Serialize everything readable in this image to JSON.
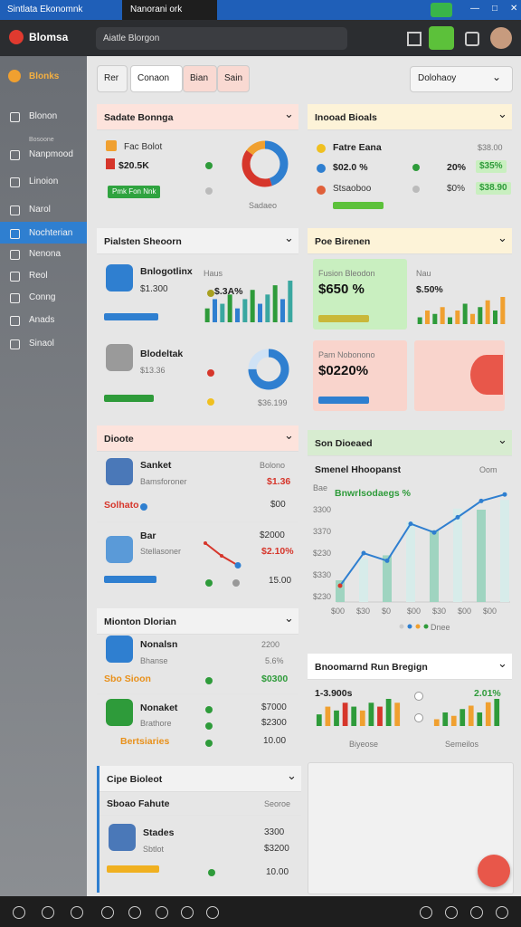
{
  "window": {
    "tabs": [
      "Sintlata Ekonomnk",
      "Nanorani ork"
    ]
  },
  "header": {
    "logo": "Blomsa",
    "search": "Aiatle Blorgon"
  },
  "sidebar": {
    "brand": "Blonks",
    "items": [
      "Blonon",
      "Nanpmood",
      "Linoion",
      "Narol",
      "Nochterian",
      "Nenona",
      "Reol",
      "Conng",
      "Anads",
      "Sinaol"
    ],
    "sub": "Bosoone",
    "active": 4
  },
  "filters": {
    "buttons": [
      "Rer",
      "Conaon",
      "Bian",
      "Sain"
    ],
    "dropdown": "Dolohaoy"
  },
  "cards": [
    {
      "title": "Sadate Bonnga",
      "texts": [
        "Fac Bolot",
        "$20.5K",
        "Pmk Fon Nnk",
        "Sadaeo"
      ],
      "donut": [
        45,
        40,
        15
      ]
    },
    {
      "title": "Pialsten Sheoorn",
      "texts": [
        "Bnlogotlinx",
        "$1.300",
        "Haus",
        "$.3A%",
        "Blodeltak",
        "$13.36",
        "$36.199"
      ],
      "bars": [
        3,
        5,
        4,
        6,
        3,
        5,
        7,
        4,
        6,
        8,
        5,
        9
      ],
      "ring": 75
    },
    {
      "title": "Dioote",
      "texts": [
        "Sanket",
        "Bamsforoner",
        "Bolono",
        "$1.36",
        "Solhato",
        "$00",
        "Bar",
        "Stellasoner",
        "$2000",
        "$2.10%",
        "15.00"
      ],
      "line": [
        4,
        2,
        0.5
      ]
    },
    {
      "title": "Mionton Dlorian",
      "texts": [
        "Nonalsn",
        "Bhanse",
        "2200",
        "5.6%",
        "Sbo Sioon",
        "$0300",
        "Nonaket",
        "Brathore",
        "$7000",
        "$2300",
        "Bertsiaries",
        "10.00"
      ]
    },
    {
      "title": "Cipe Bioleot",
      "texts": [
        "Sboao Fahute",
        "Seoroe",
        "Stades",
        "Sbtlot",
        "3300",
        "$3200",
        "10.00"
      ]
    },
    {
      "title": "Inooad Bioals",
      "texts": [
        "Fatre Eana",
        "$38.00",
        "$02.0 %",
        "20%",
        "$35%",
        "Stsaoboo",
        "$0%",
        "$38.90"
      ]
    },
    {
      "title": "Poe Birenen",
      "texts": [
        "Fusion Bleodon",
        "$650 %",
        "Nau",
        "$.50%",
        "Pam Nobonono",
        "$0220%"
      ],
      "bars": [
        2,
        4,
        3,
        5,
        2,
        4,
        6,
        3,
        5,
        7,
        4,
        8
      ]
    },
    {
      "title": "Son Dioeaed",
      "texts": [
        "Smenel Hhoopanst",
        "Oom",
        "Bnwrlsodaegs %",
        "Dnee"
      ],
      "ylabels": [
        "Bae",
        "3300",
        "3370",
        "$230",
        "$330",
        "$230"
      ],
      "xlabels": [
        "$00",
        "$30",
        "$0",
        "$00",
        "$30",
        "$00",
        "$00"
      ],
      "ylim": [
        0,
        10
      ],
      "line": [
        1.5,
        4.5,
        3.8,
        7.2,
        6.4,
        7.8,
        9.3,
        9.9
      ],
      "bars": [
        2,
        4,
        4.3,
        7.4,
        6.6,
        8.6,
        8.5,
        9.4
      ]
    },
    {
      "title": "Bnoomarnd Run Bregign",
      "texts": [
        "1-3.900s",
        "2.01%",
        "Biyeose",
        "Semeilos"
      ],
      "bars": [
        3,
        5,
        4,
        6,
        5,
        4,
        6,
        5,
        7,
        6
      ],
      "bars2": [
        2,
        4,
        3,
        5,
        6,
        4,
        7,
        8
      ]
    }
  ]
}
